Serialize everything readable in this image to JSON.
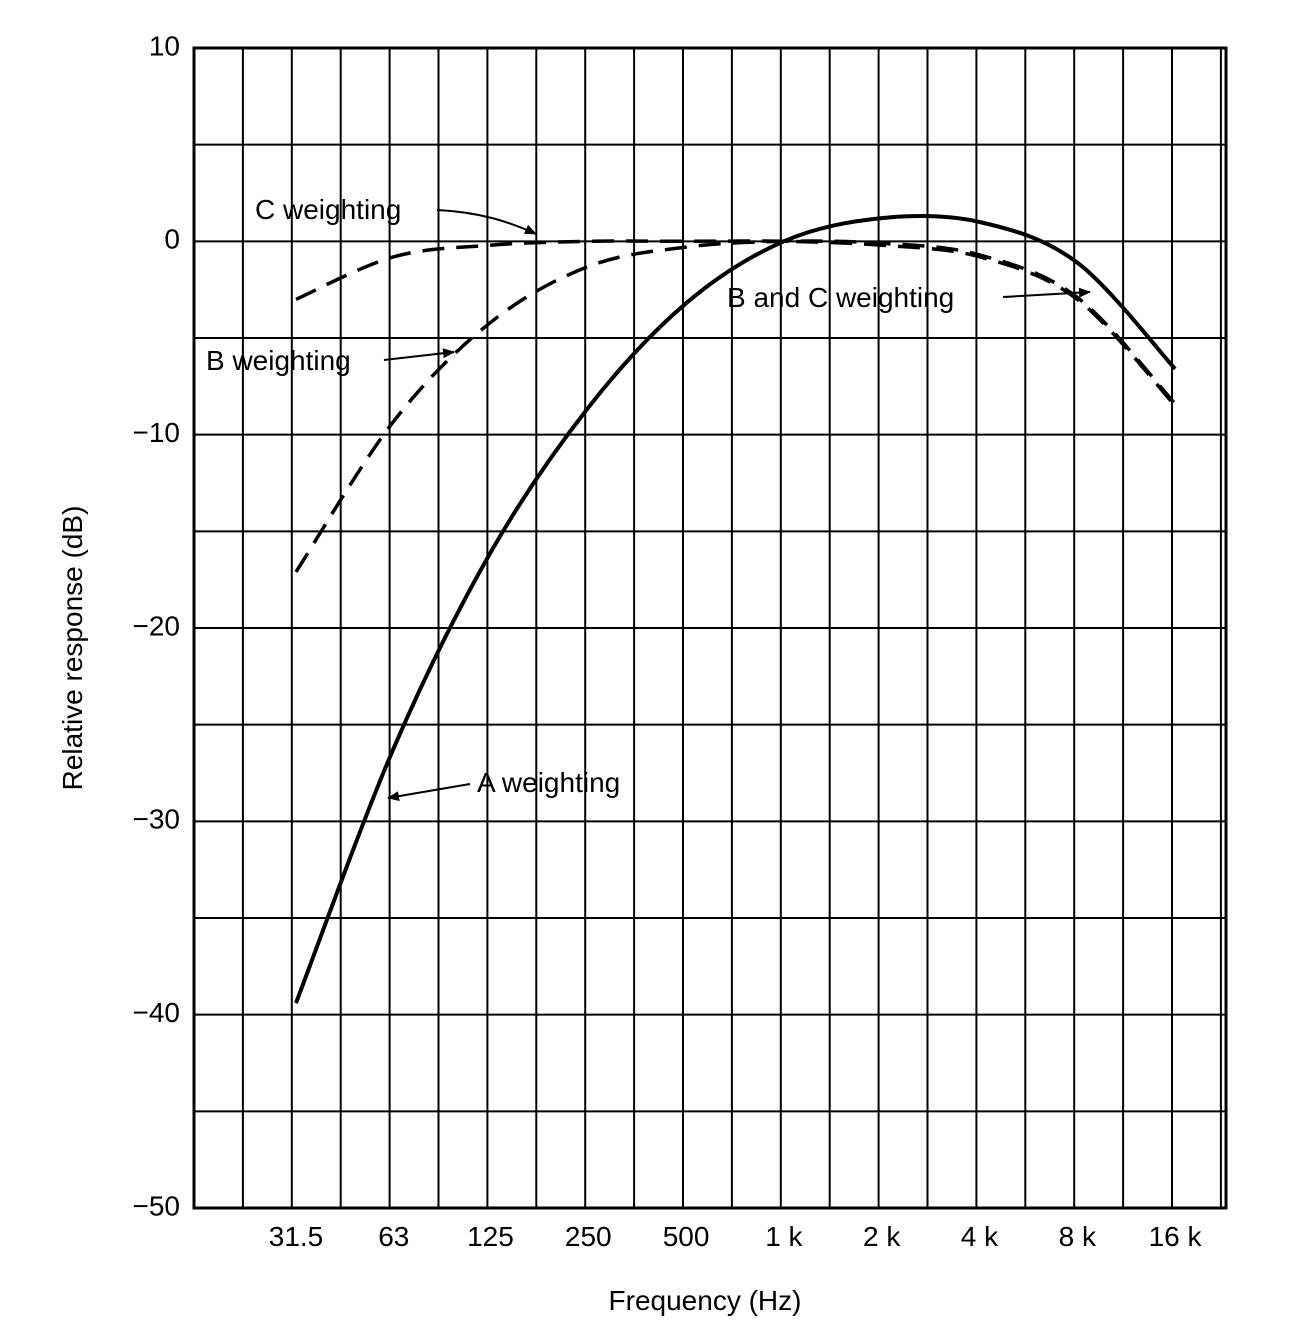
{
  "chart_data": {
    "type": "line",
    "title": "",
    "xlabel": "Frequency (Hz)",
    "ylabel": "Relative response (dB)",
    "x_tick_labels": [
      "31.5",
      "63",
      "125",
      "250",
      "500",
      "1 k",
      "2 k",
      "4 k",
      "8 k",
      "16 k"
    ],
    "x_scale": "log (octaves)",
    "ylim": [
      -50,
      10
    ],
    "y_ticks": [
      10,
      0,
      -10,
      -20,
      -30,
      -40,
      -50
    ],
    "y_tick_labels": [
      "10",
      "0",
      "−10",
      "−20",
      "−30",
      "−40",
      "−50"
    ],
    "grid": true,
    "x": [
      31.5,
      63,
      125,
      250,
      500,
      1000,
      2000,
      4000,
      8000,
      16000
    ],
    "series": [
      {
        "name": "A weighting",
        "style": "solid",
        "values": [
          -39.4,
          -26.2,
          -16.1,
          -8.6,
          -3.2,
          0.0,
          1.2,
          1.0,
          -1.1,
          -6.6
        ]
      },
      {
        "name": "B weighting",
        "style": "dashed",
        "values": [
          -17.1,
          -9.3,
          -4.2,
          -1.3,
          -0.3,
          0.0,
          -0.1,
          -0.7,
          -2.9,
          -8.4
        ]
      },
      {
        "name": "C weighting",
        "style": "dashed",
        "values": [
          -3.0,
          -0.8,
          -0.2,
          0.0,
          0.0,
          0.0,
          -0.2,
          -0.8,
          -3.0,
          -8.5
        ]
      }
    ],
    "annotations": [
      "C weighting",
      "B weighting",
      "A weighting",
      "B and C weighting"
    ]
  }
}
